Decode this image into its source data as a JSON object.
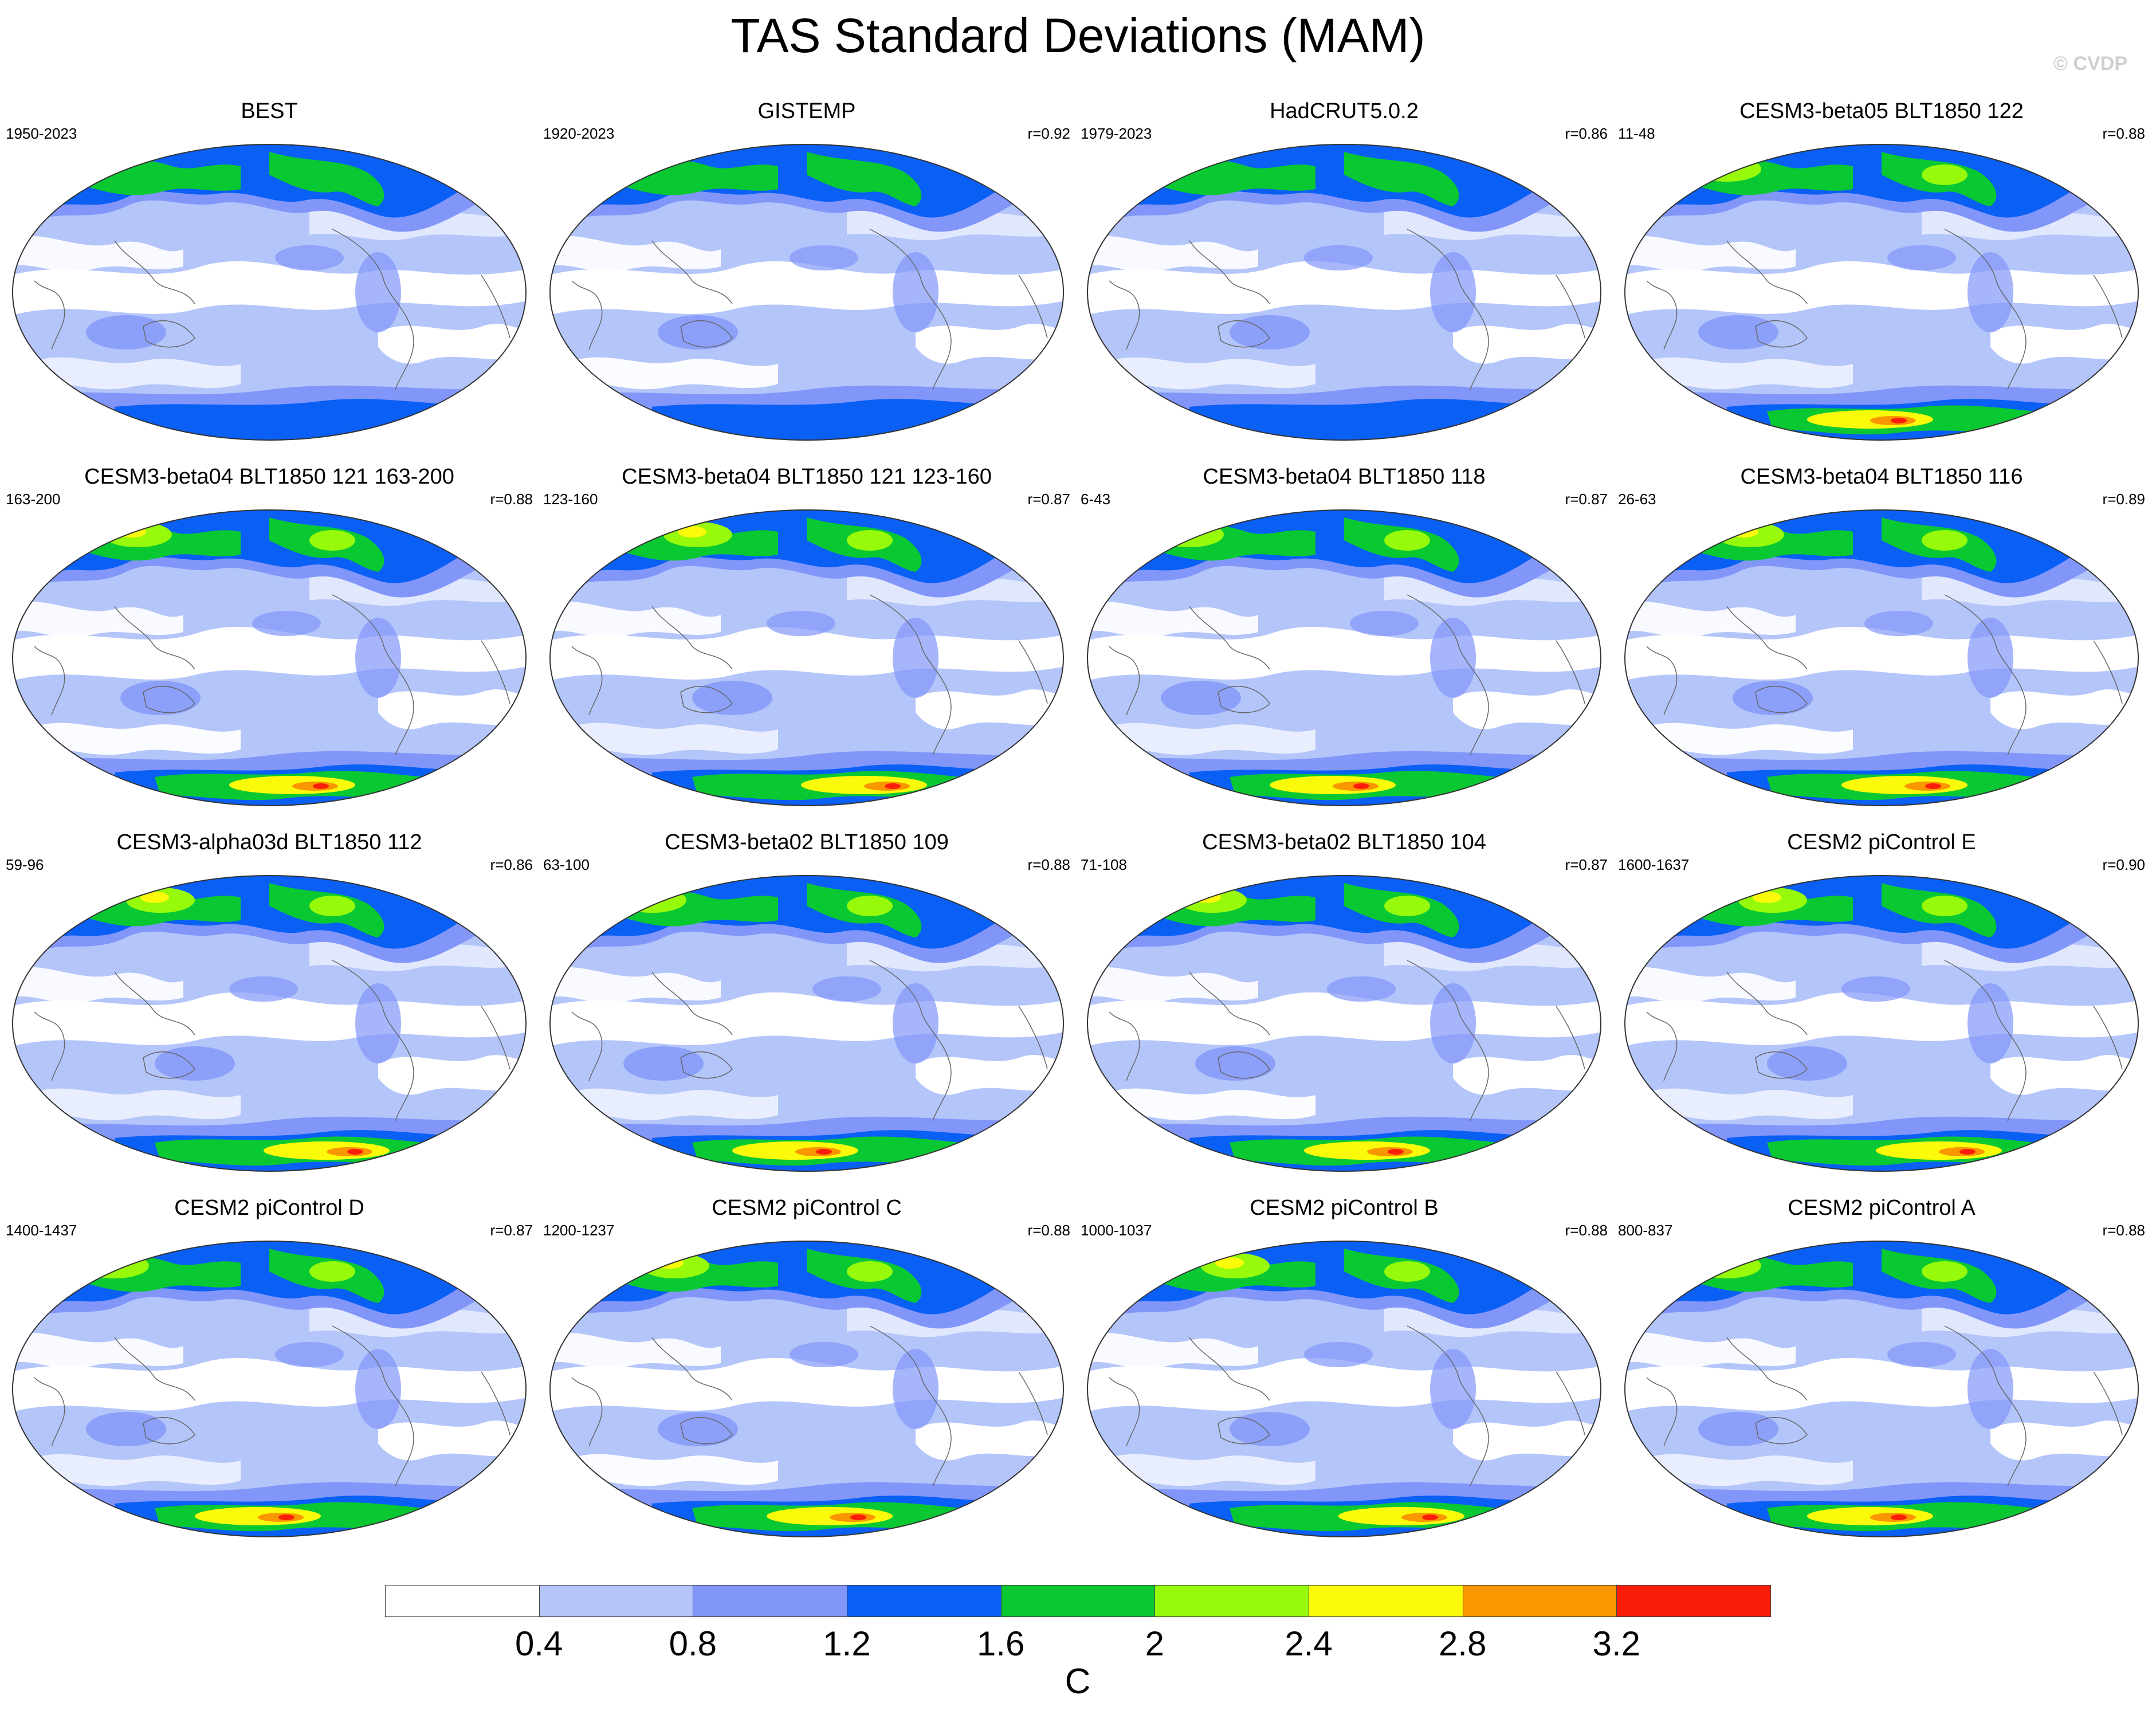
{
  "title": "TAS Standard Deviations (MAM)",
  "watermark": "© CVDP",
  "panels": [
    {
      "title": "BEST",
      "years": "1950-2023",
      "r": ""
    },
    {
      "title": "GISTEMP",
      "years": "1920-2023",
      "r": "r=0.92"
    },
    {
      "title": "HadCRUT5.0.2",
      "years": "1979-2023",
      "r": "r=0.86"
    },
    {
      "title": "CESM3-beta05 BLT1850 122",
      "years": "11-48",
      "r": "r=0.88"
    },
    {
      "title": "CESM3-beta04 BLT1850 121 163-200",
      "years": "163-200",
      "r": "r=0.88"
    },
    {
      "title": "CESM3-beta04 BLT1850 121 123-160",
      "years": "123-160",
      "r": "r=0.87"
    },
    {
      "title": "CESM3-beta04 BLT1850 118",
      "years": "6-43",
      "r": "r=0.87"
    },
    {
      "title": "CESM3-beta04 BLT1850 116",
      "years": "26-63",
      "r": "r=0.89"
    },
    {
      "title": "CESM3-alpha03d BLT1850 112",
      "years": "59-96",
      "r": "r=0.86"
    },
    {
      "title": "CESM3-beta02 BLT1850 109",
      "years": "63-100",
      "r": "r=0.88"
    },
    {
      "title": "CESM3-beta02 BLT1850 104",
      "years": "71-108",
      "r": "r=0.87"
    },
    {
      "title": "CESM2 piControl E",
      "years": "1600-1637",
      "r": "r=0.90"
    },
    {
      "title": "CESM2 piControl D",
      "years": "1400-1437",
      "r": "r=0.87"
    },
    {
      "title": "CESM2 piControl C",
      "years": "1200-1237",
      "r": "r=0.88"
    },
    {
      "title": "CESM2 piControl B",
      "years": "1000-1037",
      "r": "r=0.88"
    },
    {
      "title": "CESM2 piControl A",
      "years": "800-837",
      "r": "r=0.88"
    }
  ],
  "colorbar": {
    "colors": [
      "#ffffff",
      "#b4c5fa",
      "#8296fa",
      "#0a5ff5",
      "#0ac832",
      "#96fa0a",
      "#fafa0a",
      "#fa9600",
      "#fa1e0a"
    ],
    "labels": [
      "0.4",
      "0.8",
      "1.2",
      "1.6",
      "2",
      "2.4",
      "2.8",
      "3.2"
    ],
    "unit": "C"
  },
  "map_colors": {
    "ocean_low": "#b4c5fa",
    "no_change": "#ffffff",
    "mid": "#8296fa",
    "high": "#0a5ff5",
    "green": "#0ac832",
    "lime": "#96fa0a",
    "yellow": "#fafa0a",
    "orange": "#fa9600",
    "red": "#fa1e0a"
  }
}
